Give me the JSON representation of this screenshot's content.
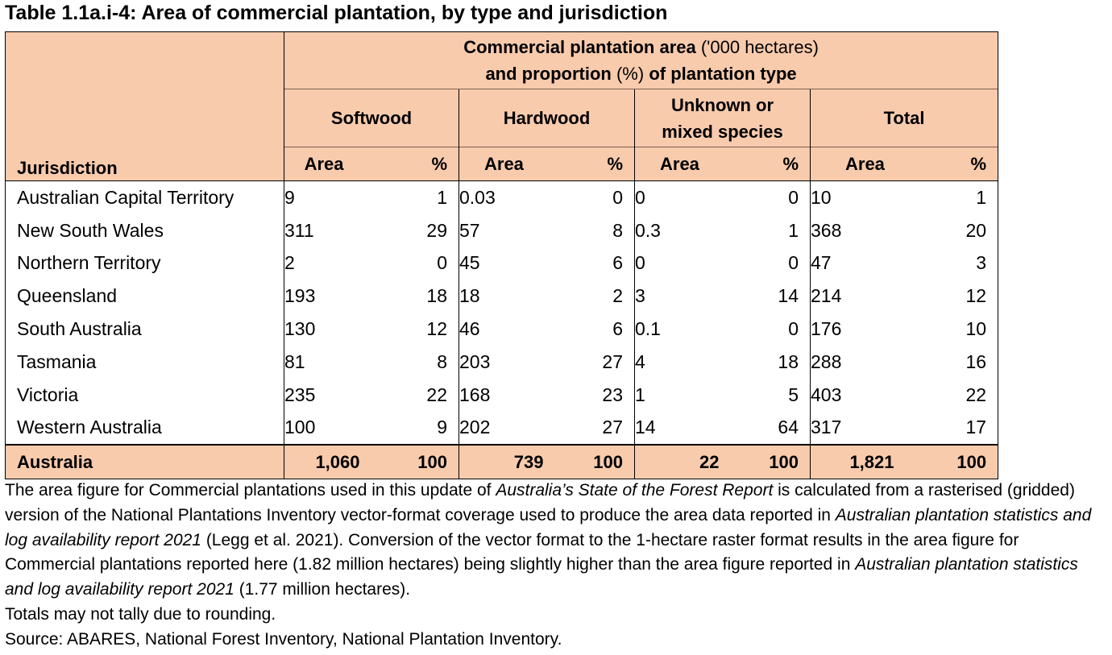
{
  "title": "Table 1.1a.i-4: Area of commercial plantation, by type and jurisdiction",
  "header": {
    "group_title_bold1": "Commercial plantation area",
    "group_title_plain1": " ('000 hectares)",
    "group_title_bold2": "and proportion",
    "group_title_plain2": " (%) ",
    "group_title_bold3": "of plantation type",
    "types": [
      "Softwood",
      "Hardwood",
      "Unknown or mixed species",
      "Total"
    ],
    "jurisdiction_label": "Jurisdiction",
    "area_label": "Area",
    "pct_label": "%"
  },
  "rows": [
    {
      "name": "Australian Capital Territory",
      "values": [
        "9",
        "1",
        "0.03",
        "0",
        "0",
        "0",
        "10",
        "1"
      ]
    },
    {
      "name": "New South Wales",
      "values": [
        "311",
        "29",
        "57",
        "8",
        "0.3",
        "1",
        "368",
        "20"
      ]
    },
    {
      "name": "Northern Territory",
      "values": [
        "2",
        "0",
        "45",
        "6",
        "0",
        "0",
        "47",
        "3"
      ]
    },
    {
      "name": "Queensland",
      "values": [
        "193",
        "18",
        "18",
        "2",
        "3",
        "14",
        "214",
        "12"
      ]
    },
    {
      "name": "South Australia",
      "values": [
        "130",
        "12",
        "46",
        "6",
        "0.1",
        "0",
        "176",
        "10"
      ]
    },
    {
      "name": "Tasmania",
      "values": [
        "81",
        "8",
        "203",
        "27",
        "4",
        "18",
        "288",
        "16"
      ]
    },
    {
      "name": "Victoria",
      "values": [
        "235",
        "22",
        "168",
        "23",
        "1",
        "5",
        "403",
        "22"
      ]
    },
    {
      "name": "Western Australia",
      "values": [
        "100",
        "9",
        "202",
        "27",
        "14",
        "64",
        "317",
        "17"
      ]
    }
  ],
  "total": {
    "name": "Australia",
    "values": [
      "1,060",
      "100",
      "739",
      "100",
      "22",
      "100",
      "1,821",
      "100"
    ]
  },
  "notes": {
    "p1_a": "The area figure for Commercial plantations used in this update of ",
    "p1_b": "Australia’s State of the Forest Report",
    "p1_c": " is calculated from a rasterised (gridded) version of the National Plantations Inventory vector-format coverage used to produce the area data reported in ",
    "p1_d": "Australian plantation statistics and log availability report 2021",
    "p1_e": " (Legg et al. 2021). Conversion of the vector format to the 1-hectare raster format results in the area figure for Commercial plantations reported here (1.82 million hectares) being slightly higher than the area figure reported in ",
    "p1_f": "Australian plantation statistics and log availability report 2021",
    "p1_g": " (1.77 million hectares).",
    "p2": "Totals may not tally due to rounding.",
    "p3": "Source: ABARES, National Forest Inventory, National Plantation Inventory."
  }
}
